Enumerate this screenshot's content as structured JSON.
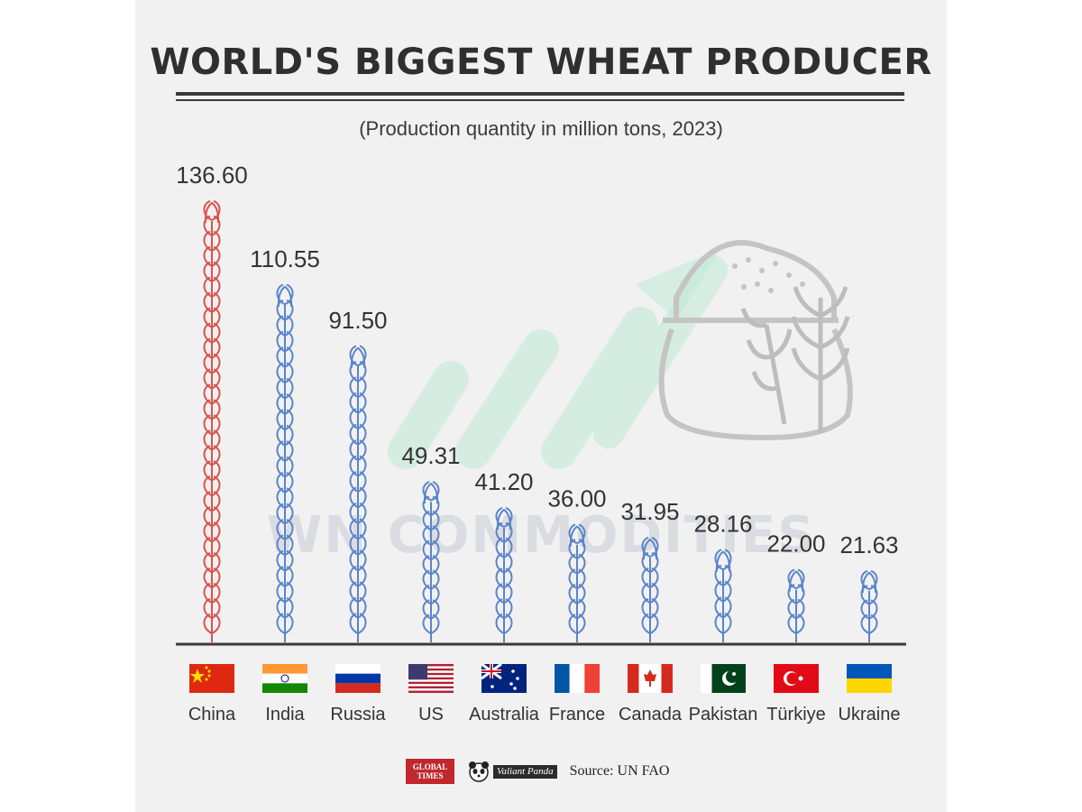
{
  "header": {
    "title": "WORLD'S BIGGEST WHEAT PRODUCER",
    "subtitle": "(Production quantity in million tons, 2023)"
  },
  "watermark": "WN COMMODITIES",
  "colors": {
    "highlight": "#d9534f",
    "normal": "#5b84c9",
    "watermark_green": "#bfe9d6"
  },
  "chart_data": {
    "type": "bar",
    "title": "WORLD'S BIGGEST WHEAT PRODUCER",
    "subtitle": "(Production quantity in million tons, 2023)",
    "categories": [
      "China",
      "India",
      "Russia",
      "US",
      "Australia",
      "France",
      "Canada",
      "Pakistan",
      "Türkiye",
      "Ukraine"
    ],
    "values": [
      136.6,
      110.55,
      91.5,
      49.31,
      41.2,
      36.0,
      31.95,
      28.16,
      22.0,
      21.63
    ],
    "value_labels": [
      "136.60",
      "110.55",
      "91.50",
      "49.31",
      "41.20",
      "36.00",
      "31.95",
      "28.16",
      "22.00",
      "21.63"
    ],
    "unit": "million tons",
    "ylim": [
      0,
      140
    ],
    "grid": false,
    "legend": "none"
  },
  "flags": [
    "china-flag",
    "india-flag",
    "russia-flag",
    "us-flag",
    "australia-flag",
    "france-flag",
    "canada-flag",
    "pakistan-flag",
    "turkiye-flag",
    "ukraine-flag"
  ],
  "footer": {
    "logo1_text": "GLOBAL TIMES",
    "logo2_text": "Valiant Panda",
    "source": "Source: UN FAO"
  }
}
